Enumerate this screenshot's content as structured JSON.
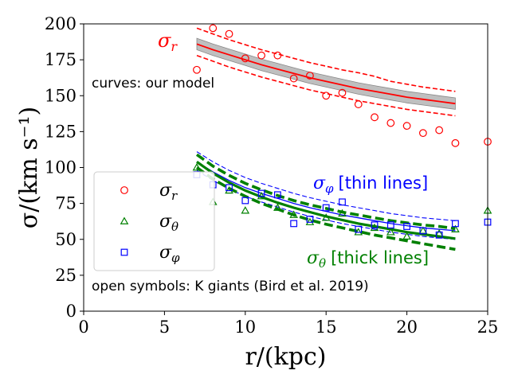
{
  "chart_data": {
    "type": "line",
    "xlabel": "r/(kpc)",
    "ylabel": "σ/(km s⁻¹)",
    "xlim": [
      0,
      25
    ],
    "ylim": [
      0,
      200
    ],
    "xticks": [
      0,
      5,
      10,
      15,
      20,
      25
    ],
    "yticks": [
      0,
      25,
      50,
      75,
      100,
      125,
      150,
      175,
      200
    ],
    "xtick_labels": [
      "0",
      "5",
      "10",
      "15",
      "20",
      "25"
    ],
    "ytick_labels": [
      "0",
      "25",
      "50",
      "75",
      "100",
      "125",
      "150",
      "175",
      "200"
    ],
    "colors": {
      "r": "#ff0000",
      "theta": "#008000",
      "phi": "#0000ff",
      "band": "#aaaaaa"
    },
    "model_curves": [
      {
        "name": "sigma_r model",
        "color": "#ff0000",
        "x": [
          7,
          8,
          9,
          10,
          11,
          12,
          13,
          14,
          15,
          16,
          17,
          18,
          19,
          20,
          21,
          22,
          23
        ],
        "median": [
          186,
          182,
          178.5,
          175,
          171.5,
          168.5,
          165.5,
          162.5,
          160,
          157.5,
          155,
          153,
          151,
          149,
          147.5,
          146,
          144.5
        ],
        "band_lower": [
          182,
          178,
          174.5,
          171,
          167.5,
          164.5,
          161.5,
          158.5,
          156,
          153.5,
          151,
          149,
          147,
          145,
          143.5,
          142,
          140.5
        ],
        "band_upper": [
          190,
          186,
          182.5,
          179,
          175.5,
          172.5,
          169.5,
          166.5,
          164,
          161.5,
          159,
          157,
          155,
          153,
          151.5,
          150,
          148.5
        ],
        "lower_dashed": [
          178,
          174,
          170,
          166.5,
          163,
          160,
          157,
          154,
          151.5,
          149,
          146.5,
          144.5,
          142.5,
          140.5,
          139,
          137.5,
          136
        ],
        "upper_dashed": [
          197,
          193,
          189,
          185.5,
          182,
          179,
          176,
          173,
          170.5,
          168,
          166,
          163.5,
          160,
          158,
          156,
          154.5,
          153
        ]
      },
      {
        "name": "sigma_phi model (thin lines)",
        "color": "#0000ff",
        "x": [
          7,
          8,
          9,
          10,
          11,
          12,
          13,
          14,
          15,
          16,
          17,
          18,
          19,
          20,
          21,
          22,
          23
        ],
        "median": [
          104,
          97,
          91,
          86,
          82,
          78.5,
          75,
          72,
          69.5,
          67,
          65,
          63,
          61,
          59.5,
          58,
          57,
          56
        ],
        "lower_dashed": [
          98,
          91,
          85,
          80,
          76,
          72.5,
          69,
          66,
          63.5,
          61,
          59,
          57,
          55,
          53.5,
          52,
          51,
          50
        ],
        "upper_dashed": [
          111,
          104,
          98,
          93,
          89,
          85.5,
          82,
          79,
          76.5,
          74,
          72,
          70,
          68,
          66.5,
          65,
          64,
          63
        ]
      },
      {
        "name": "sigma_theta model (thick lines)",
        "color": "#008000",
        "x": [
          7,
          8,
          9,
          10,
          11,
          12,
          13,
          14,
          15,
          16,
          17,
          18,
          19,
          20,
          21,
          22,
          23
        ],
        "median": [
          104,
          96,
          89.5,
          84,
          79.5,
          75.5,
          72,
          69,
          66,
          63.5,
          61,
          59,
          57,
          55,
          53.5,
          52,
          50.5
        ],
        "lower_dashed": [
          100,
          92,
          85.5,
          80,
          75,
          71,
          67,
          63.5,
          60.5,
          58,
          55.5,
          53,
          51,
          49,
          47,
          45,
          43
        ],
        "upper_dashed": [
          109,
          101,
          94.5,
          89,
          84.5,
          80.5,
          77,
          74,
          71.5,
          69,
          67,
          65,
          63,
          61.5,
          60,
          59,
          57.5
        ]
      }
    ],
    "scatter_series": [
      {
        "name": "σ_r",
        "marker": "circle",
        "color": "#ff0000",
        "x": [
          7,
          8,
          9,
          10,
          11,
          12,
          13,
          14,
          15,
          16,
          17,
          18,
          19,
          20,
          21,
          22,
          23,
          25
        ],
        "y": [
          168,
          197,
          193,
          176,
          178,
          178,
          162,
          164,
          150,
          152,
          144,
          135,
          131,
          129,
          124,
          126,
          117,
          118
        ]
      },
      {
        "name": "σ_θ",
        "marker": "triangle",
        "color": "#008000",
        "x": [
          7,
          8,
          9,
          10,
          11,
          12,
          13,
          14,
          15,
          16,
          17,
          18,
          19,
          20,
          21,
          22,
          23,
          25
        ],
        "y": [
          100,
          76,
          84,
          70,
          80,
          72,
          67,
          62,
          65,
          68,
          55,
          58,
          55,
          52,
          56,
          54,
          57,
          70
        ]
      },
      {
        "name": "σ_φ",
        "marker": "square",
        "color": "#0000ff",
        "x": [
          7,
          8,
          9,
          10,
          11,
          12,
          13,
          14,
          15,
          16,
          17,
          18,
          19,
          20,
          21,
          22,
          23,
          25
        ],
        "y": [
          95,
          88,
          86,
          77,
          82,
          81,
          61,
          64,
          72,
          76,
          57,
          60,
          60,
          59,
          56,
          53,
          61,
          62
        ]
      }
    ],
    "legend": {
      "position": "center-left",
      "entries": [
        {
          "label": "σ",
          "sub": "r",
          "marker": "circle",
          "color": "#ff0000"
        },
        {
          "label": "σ",
          "sub": "θ",
          "marker": "triangle",
          "color": "#008000"
        },
        {
          "label": "σ",
          "sub": "φ",
          "marker": "square",
          "color": "#0000ff"
        }
      ]
    },
    "annotations": {
      "sigma_r_label": {
        "sym": "σ",
        "sub": "r"
      },
      "curves_note": "curves: our model",
      "phi_label": {
        "sym": "σ",
        "sub": "φ",
        "text": "[thin lines]"
      },
      "theta_label": {
        "sym": "σ",
        "sub": "θ",
        "text": "[thick lines]"
      },
      "data_note": "open symbols: K giants (Bird et al. 2019)"
    }
  }
}
